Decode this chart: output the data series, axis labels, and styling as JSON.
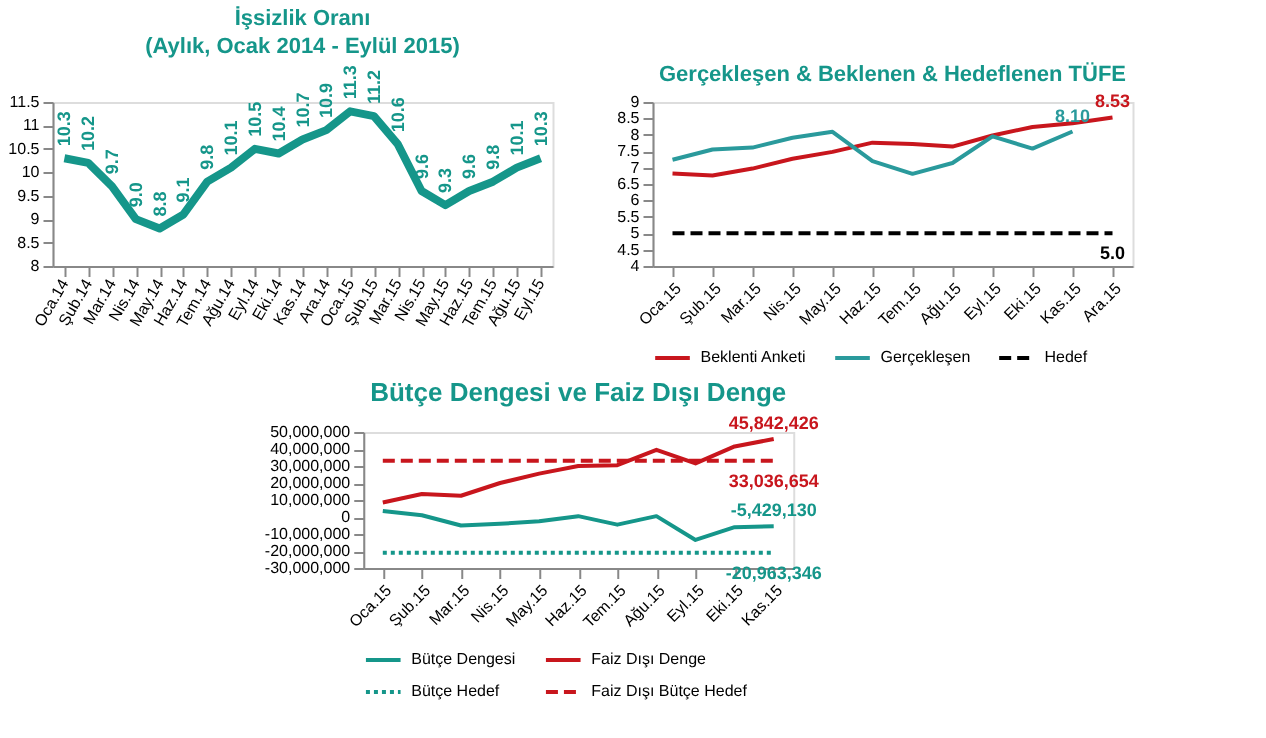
{
  "chart_data": [
    {
      "type": "line",
      "title": "İşsizlik Oranı",
      "subtitle": "(Aylık, Ocak 2014 - Eylül 2015)",
      "categories": [
        "Oca.14",
        "Şub.14",
        "Mar.14",
        "Nis.14",
        "May.14",
        "Haz.14",
        "Tem.14",
        "Ağu.14",
        "Eyl.14",
        "Eki.14",
        "Kas.14",
        "Ara.14",
        "Oca.15",
        "Şub.15",
        "Mar.15",
        "Nis.15",
        "May.15",
        "Haz.15",
        "Tem.15",
        "Ağu.15",
        "Eyl.15"
      ],
      "values": [
        10.3,
        10.2,
        9.7,
        9.0,
        8.8,
        9.1,
        9.8,
        10.1,
        10.5,
        10.4,
        10.7,
        10.9,
        11.3,
        11.2,
        10.6,
        9.6,
        9.3,
        9.6,
        9.8,
        10.1,
        10.3
      ],
      "color": "#15968a",
      "value_labels": [
        "10.3",
        "10.2",
        "9.7",
        "9.0",
        "8.8",
        "9.1",
        "9.8",
        "10.1",
        "10.5",
        "10.4",
        "10.7",
        "10.9",
        "11.3",
        "11.2",
        "10.6",
        "9.6",
        "9.3",
        "9.6",
        "9.8",
        "10.1",
        "10.3"
      ],
      "ylim": [
        8,
        11.5
      ],
      "yticks": [
        8,
        8.5,
        9,
        9.5,
        10,
        10.5,
        11,
        11.5
      ],
      "grid": false,
      "legend": false
    },
    {
      "type": "line",
      "title": "Gerçekleşen & Beklenen & Hedeflenen TÜFE",
      "categories": [
        "Oca.15",
        "Şub.15",
        "Mar.15",
        "Nis.15",
        "May.15",
        "Haz.15",
        "Tem.15",
        "Ağu.15",
        "Eyl.15",
        "Eki.15",
        "Kas.15",
        "Ara.15"
      ],
      "series": [
        {
          "name": "Beklenti Anketi",
          "color": "#c8161d",
          "line_style": "solid",
          "values": [
            6.82,
            6.76,
            6.97,
            7.27,
            7.48,
            7.76,
            7.72,
            7.64,
            7.98,
            8.24,
            8.35,
            8.53
          ],
          "value_labels": [
            null,
            null,
            null,
            null,
            null,
            null,
            null,
            null,
            null,
            null,
            null,
            "8.53"
          ]
        },
        {
          "name": "Gerçekleşen",
          "color": "#2a9a9c",
          "line_style": "solid",
          "values": [
            7.24,
            7.55,
            7.61,
            7.91,
            8.09,
            7.2,
            6.81,
            7.14,
            7.95,
            7.58,
            8.1,
            null
          ],
          "value_labels": [
            null,
            null,
            null,
            null,
            null,
            null,
            null,
            null,
            null,
            null,
            "8.10",
            null
          ]
        },
        {
          "name": "Hedef",
          "color": "#000000",
          "line_style": "dashed",
          "values": [
            5.0,
            5.0,
            5.0,
            5.0,
            5.0,
            5.0,
            5.0,
            5.0,
            5.0,
            5.0,
            5.0,
            5.0
          ],
          "value_labels": [
            null,
            null,
            null,
            null,
            null,
            null,
            null,
            null,
            null,
            null,
            null,
            "5.0"
          ]
        }
      ],
      "ylim": [
        4,
        9
      ],
      "yticks": [
        4,
        4.5,
        5,
        5.5,
        6,
        6.5,
        7,
        7.5,
        8,
        8.5,
        9
      ],
      "grid": false,
      "legend": "bottom"
    },
    {
      "type": "line",
      "title": "Bütçe Dengesi ve Faiz Dışı Denge",
      "categories": [
        "Oca.15",
        "Şub.15",
        "Mar.15",
        "Nis.15",
        "May.15",
        "Haz.15",
        "Tem.15",
        "Ağu.15",
        "Eyl.15",
        "Eki.15",
        "Kas.15"
      ],
      "series": [
        {
          "name": "Bütçe Dengesi",
          "color": "#15968a",
          "line_style": "solid",
          "values": [
            3500000,
            1000000,
            -5000000,
            -4000000,
            -2500000,
            500000,
            -4500000,
            500000,
            -13500000,
            -6000000,
            -5429130
          ],
          "value_labels": [
            null,
            null,
            null,
            null,
            null,
            null,
            null,
            null,
            null,
            null,
            "-5,429,130"
          ]
        },
        {
          "name": "Faiz Dışı Denge",
          "color": "#c8161d",
          "line_style": "solid",
          "values": [
            8500000,
            13500000,
            12500000,
            20000000,
            25500000,
            30000000,
            30500000,
            39500000,
            31500000,
            41500000,
            45842426
          ],
          "value_labels": [
            null,
            null,
            null,
            null,
            null,
            null,
            null,
            null,
            null,
            null,
            "45,842,426"
          ]
        },
        {
          "name": "Bütçe Hedef",
          "color": "#15968a",
          "line_style": "dotted",
          "values": [
            -20963346,
            -20963346,
            -20963346,
            -20963346,
            -20963346,
            -20963346,
            -20963346,
            -20963346,
            -20963346,
            -20963346,
            -20963346
          ],
          "value_labels": [
            null,
            null,
            null,
            null,
            null,
            null,
            null,
            null,
            null,
            null,
            "-20,963,346"
          ]
        },
        {
          "name": "Faiz Dışı Bütçe Hedef",
          "color": "#c8161d",
          "line_style": "dashed",
          "values": [
            33036654,
            33036654,
            33036654,
            33036654,
            33036654,
            33036654,
            33036654,
            33036654,
            33036654,
            33036654,
            33036654
          ],
          "value_labels": [
            null,
            null,
            null,
            null,
            null,
            null,
            null,
            null,
            null,
            null,
            "33,036,654"
          ]
        }
      ],
      "ylim": [
        -30000000,
        50000000
      ],
      "yticks": [
        {
          "value": -30000000,
          "label": "-30,000,000"
        },
        {
          "value": -20000000,
          "label": "-20,000,000"
        },
        {
          "value": -10000000,
          "label": "-10,000,000"
        },
        {
          "value": 0,
          "label": "0"
        },
        {
          "value": 10000000,
          "label": "10,000,000"
        },
        {
          "value": 20000000,
          "label": "20,000,000"
        },
        {
          "value": 30000000,
          "label": "30,000,000"
        },
        {
          "value": 40000000,
          "label": "40,000,000"
        },
        {
          "value": 50000000,
          "label": "50,000,000"
        }
      ],
      "grid": false,
      "legend": "bottom"
    }
  ]
}
